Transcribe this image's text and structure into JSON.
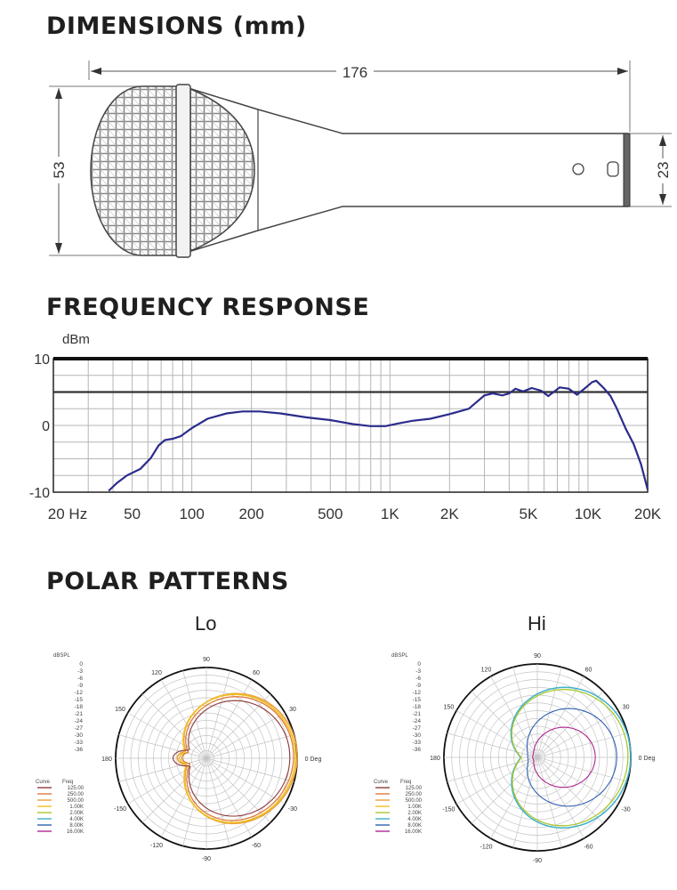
{
  "dimensions": {
    "heading": "DIMENSIONS (mm)",
    "length": "176",
    "head_diameter": "53",
    "handle_end_diameter": "23"
  },
  "frequency_response": {
    "heading": "FREQUENCY RESPONSE",
    "chart_data": {
      "type": "line",
      "ylabel": "dBm",
      "xscale": "log",
      "xlim": [
        20,
        20000
      ],
      "ylim": [
        -10,
        10
      ],
      "y_ticks": [
        "10",
        "0",
        "-10"
      ],
      "x_ticks": [
        {
          "v": 20,
          "label": "20 Hz"
        },
        {
          "v": 50,
          "label": "50"
        },
        {
          "v": 100,
          "label": "100"
        },
        {
          "v": 200,
          "label": "200"
        },
        {
          "v": 500,
          "label": "500"
        },
        {
          "v": 1000,
          "label": "1K"
        },
        {
          "v": 2000,
          "label": "2K"
        },
        {
          "v": 5000,
          "label": "5K"
        },
        {
          "v": 10000,
          "label": "10K"
        },
        {
          "v": 20000,
          "label": "20K"
        }
      ],
      "reference_line_db": 5,
      "series": [
        {
          "color": "#2b2b8c",
          "points": [
            [
              38,
              -9.8
            ],
            [
              42,
              -8.6
            ],
            [
              47,
              -7.5
            ],
            [
              55,
              -6.5
            ],
            [
              62,
              -4.9
            ],
            [
              68,
              -3
            ],
            [
              73,
              -2.2
            ],
            [
              80,
              -2
            ],
            [
              88,
              -1.6
            ],
            [
              100,
              -0.4
            ],
            [
              120,
              1
            ],
            [
              150,
              1.8
            ],
            [
              180,
              2.1
            ],
            [
              220,
              2.1
            ],
            [
              280,
              1.8
            ],
            [
              380,
              1.2
            ],
            [
              500,
              0.8
            ],
            [
              650,
              0.2
            ],
            [
              800,
              -0.1
            ],
            [
              950,
              -0.1
            ],
            [
              1100,
              0.3
            ],
            [
              1300,
              0.7
            ],
            [
              1600,
              1
            ],
            [
              2000,
              1.7
            ],
            [
              2500,
              2.5
            ],
            [
              3000,
              4.5
            ],
            [
              3300,
              4.8
            ],
            [
              3700,
              4.5
            ],
            [
              4000,
              4.8
            ],
            [
              4300,
              5.5
            ],
            [
              4700,
              5.1
            ],
            [
              5200,
              5.6
            ],
            [
              5800,
              5.2
            ],
            [
              6300,
              4.4
            ],
            [
              7200,
              5.7
            ],
            [
              8000,
              5.5
            ],
            [
              8800,
              4.6
            ],
            [
              9500,
              5.4
            ],
            [
              10500,
              6.5
            ],
            [
              11000,
              6.7
            ],
            [
              12000,
              5.6
            ],
            [
              13000,
              4.4
            ],
            [
              14000,
              2.5
            ],
            [
              15500,
              -0.5
            ],
            [
              17000,
              -2.8
            ],
            [
              18500,
              -5.8
            ],
            [
              20000,
              -9.6
            ]
          ]
        }
      ]
    }
  },
  "polar": {
    "heading": "POLAR PATTERNS",
    "legend_header_curve": "Curve",
    "legend_header_freq": "Freq",
    "legend": [
      {
        "freq": "125.00",
        "color": "#8c3a3a"
      },
      {
        "freq": "250.00",
        "color": "#e07a3a"
      },
      {
        "freq": "500.00",
        "color": "#e8a040"
      },
      {
        "freq": "1.00K",
        "color": "#f0c020"
      },
      {
        "freq": "2.00K",
        "color": "#a8c830"
      },
      {
        "freq": "4.00K",
        "color": "#40b0c8"
      },
      {
        "freq": "8.00K",
        "color": "#3060b0"
      },
      {
        "freq": "16.00K",
        "color": "#b02890"
      }
    ],
    "db_unit": "dBSPL",
    "db_scale": [
      "0",
      "-3",
      "-6",
      "-9",
      "-12",
      "-15",
      "-18",
      "-21",
      "-24",
      "-27",
      "-30",
      "-33",
      "-36"
    ],
    "angle_labels": {
      "a90": "90",
      "a60": "60",
      "a30": "30",
      "a0": "0 Deg",
      "am30": "-30",
      "am60": "-60",
      "am90": "-90",
      "am120": "-120",
      "am150": "-150",
      "a180": "180",
      "a150": "150",
      "a120": "120"
    },
    "lo": {
      "title": "Lo"
    },
    "hi": {
      "title": "Hi"
    }
  }
}
